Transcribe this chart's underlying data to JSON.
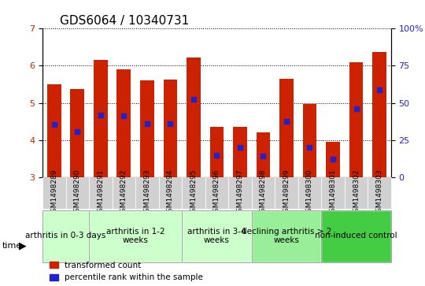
{
  "title": "GDS6064 / 10340731",
  "samples": [
    "GSM1498289",
    "GSM1498290",
    "GSM1498291",
    "GSM1498292",
    "GSM1498293",
    "GSM1498294",
    "GSM1498295",
    "GSM1498296",
    "GSM1498297",
    "GSM1498298",
    "GSM1498299",
    "GSM1498300",
    "GSM1498301",
    "GSM1498302",
    "GSM1498303"
  ],
  "bar_values": [
    5.5,
    5.38,
    6.15,
    5.9,
    5.6,
    5.62,
    6.22,
    4.35,
    4.35,
    4.2,
    5.65,
    4.98,
    3.95,
    6.1,
    6.38
  ],
  "percentile_values": [
    4.42,
    4.22,
    4.68,
    4.65,
    4.45,
    4.45,
    5.1,
    3.6,
    3.8,
    3.58,
    4.5,
    3.8,
    3.48,
    4.85,
    5.35
  ],
  "bar_bottom": 3.0,
  "ylim_left": [
    3.0,
    7.0
  ],
  "ylim_right": [
    0,
    100
  ],
  "yticks_left": [
    3,
    4,
    5,
    6,
    7
  ],
  "yticks_right": [
    0,
    25,
    50,
    75,
    100
  ],
  "ytick_labels_right": [
    "0",
    "25",
    "50",
    "75",
    "100%"
  ],
  "bar_color": "#cc2200",
  "percentile_color": "#2222cc",
  "bar_width": 0.6,
  "groups": [
    {
      "label": "arthritis in 0-3 days",
      "start": 0,
      "end": 2,
      "color": "#ccffcc"
    },
    {
      "label": "arthritis in 1-2\nweeks",
      "start": 2,
      "end": 6,
      "color": "#ccffcc"
    },
    {
      "label": "arthritis in 3-4\nweeks",
      "start": 6,
      "end": 9,
      "color": "#ccffcc"
    },
    {
      "label": "declining arthritis > 2\nweeks",
      "start": 9,
      "end": 12,
      "color": "#99ee99"
    },
    {
      "label": "non-induced control",
      "start": 12,
      "end": 15,
      "color": "#44cc44"
    }
  ],
  "legend_red_label": "transformed count",
  "legend_blue_label": "percentile rank within the sample",
  "time_label": "time",
  "grid_style": "dotted",
  "title_fontsize": 11,
  "axis_fontsize": 8,
  "tick_fontsize": 8,
  "group_label_fontsize": 7.5
}
